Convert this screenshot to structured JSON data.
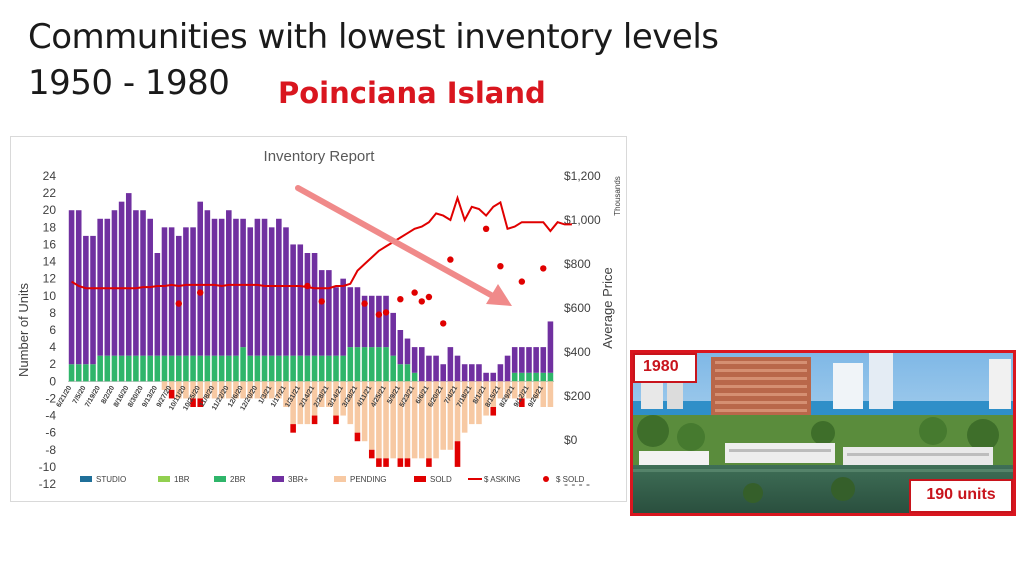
{
  "slide": {
    "title_line1": "Communities with lowest inventory levels",
    "title_line2": "1950 - 1980",
    "community": "Poinciana Island"
  },
  "photo": {
    "year_label": "1980",
    "units_label": "190 units"
  },
  "colors": {
    "title_red": "#d9161f",
    "studio": "#1f6f99",
    "br1": "#92d050",
    "br2": "#2fb56a",
    "br3plus": "#7030a0",
    "pending": "#f7c9a3",
    "sold": "#e00000",
    "asking": "#e00000",
    "arrow": "#f08a8a"
  },
  "chart_data": {
    "type": "bar",
    "title": "Inventory Report",
    "ylabel": "Number of Units",
    "y2label": "Average Price",
    "y2unit": "Thousands",
    "ylim": [
      -12,
      24
    ],
    "yticks": [
      24,
      22,
      20,
      18,
      16,
      14,
      12,
      10,
      8,
      6,
      4,
      2,
      0,
      -2,
      -4,
      -6,
      -8,
      -10,
      -12
    ],
    "y2lim": [
      -200,
      1200
    ],
    "y2ticks": [
      {
        "v": 1200,
        "label": "$1,200"
      },
      {
        "v": 1000,
        "label": "$1,000"
      },
      {
        "v": 800,
        "label": "$800"
      },
      {
        "v": 600,
        "label": "$600"
      },
      {
        "v": 400,
        "label": "$400"
      },
      {
        "v": 200,
        "label": "$200"
      },
      {
        "v": 0,
        "label": "$0"
      },
      {
        "v": -200,
        "label": "- - - -"
      }
    ],
    "x_tick_labels": [
      "6/21/20",
      "7/5/20",
      "7/19/20",
      "8/2/20",
      "8/16/20",
      "8/30/20",
      "9/13/20",
      "9/27/20",
      "10/11/20",
      "10/25/20",
      "11/8/20",
      "11/22/20",
      "12/6/20",
      "12/20/20",
      "1/3/21",
      "1/17/21",
      "1/31/21",
      "2/14/21",
      "2/28/21",
      "3/14/21",
      "3/28/21",
      "4/11/21",
      "4/25/21",
      "5/9/21",
      "5/23/21",
      "6/6/21",
      "6/20/21",
      "7/4/21",
      "7/18/21",
      "8/1/21",
      "8/15/21",
      "8/29/21",
      "9/12/21",
      "9/26/21"
    ],
    "legend": [
      "STUDIO",
      "1BR",
      "2BR",
      "3BR+",
      "PENDING",
      "SOLD",
      "$ ASKING",
      "$ SOLD"
    ],
    "legend_position": "bottom",
    "series": [
      {
        "name": "STUDIO",
        "values": [
          0,
          0,
          0,
          0,
          0,
          0,
          0,
          0,
          0,
          0,
          0,
          0,
          0,
          0,
          0,
          0,
          0,
          0,
          0,
          0,
          0,
          0,
          0,
          0,
          0,
          0,
          0,
          0,
          0,
          0,
          0,
          0,
          0,
          0,
          0,
          0,
          0,
          0,
          0,
          0,
          0,
          0,
          0,
          0,
          0,
          0,
          0,
          0,
          0,
          0,
          0,
          0,
          0,
          0,
          0,
          0,
          0,
          0,
          0,
          0,
          0,
          0,
          0,
          0,
          0,
          0,
          0,
          0
        ]
      },
      {
        "name": "1BR",
        "values": [
          0,
          0,
          0,
          0,
          0,
          0,
          0,
          0,
          0,
          0,
          0,
          0,
          0,
          0,
          0,
          0,
          0,
          0,
          0,
          0,
          0,
          0,
          0,
          0,
          0,
          0,
          0,
          0,
          0,
          0,
          0,
          0,
          0,
          0,
          0,
          0,
          0,
          0,
          0,
          0,
          0,
          0,
          0,
          0,
          0,
          0,
          0,
          0,
          0,
          0,
          0,
          0,
          0,
          0,
          0,
          0,
          0,
          0,
          0,
          0,
          0,
          0,
          0,
          0,
          0,
          0,
          0,
          0
        ]
      },
      {
        "name": "2BR",
        "values": [
          2,
          2,
          2,
          2,
          3,
          3,
          3,
          3,
          3,
          3,
          3,
          3,
          3,
          3,
          3,
          3,
          3,
          3,
          3,
          3,
          3,
          3,
          3,
          3,
          4,
          3,
          3,
          3,
          3,
          3,
          3,
          3,
          3,
          3,
          3,
          3,
          3,
          3,
          3,
          4,
          4,
          4,
          4,
          4,
          4,
          3,
          2,
          2,
          1,
          0,
          0,
          0,
          0,
          0,
          0,
          0,
          0,
          0,
          0,
          0,
          0,
          0,
          1,
          1,
          1,
          1,
          1,
          1,
          1,
          1,
          1
        ]
      },
      {
        "name": "3BR+",
        "values": [
          18,
          18,
          15,
          15,
          16,
          16,
          17,
          18,
          19,
          17,
          17,
          16,
          12,
          15,
          15,
          14,
          15,
          15,
          18,
          17,
          16,
          16,
          17,
          16,
          15,
          15,
          16,
          16,
          15,
          16,
          15,
          13,
          13,
          12,
          12,
          10,
          10,
          8,
          9,
          7,
          7,
          6,
          6,
          6,
          6,
          5,
          4,
          3,
          3,
          4,
          3,
          3,
          2,
          4,
          3,
          2,
          2,
          2,
          1,
          1,
          2,
          3,
          3,
          3,
          3,
          3,
          3,
          6,
          5,
          5,
          4
        ]
      },
      {
        "name": "PENDING",
        "values": [
          0,
          0,
          0,
          0,
          0,
          0,
          0,
          0,
          0,
          0,
          0,
          0,
          0,
          -1,
          -1,
          -2,
          -2,
          -2,
          -2,
          -2,
          -2,
          -2,
          -2,
          -2,
          -2,
          -2,
          -2,
          -2,
          -2,
          -2,
          -3,
          -5,
          -5,
          -5,
          -4,
          -3,
          -3,
          -4,
          -4,
          -5,
          -6,
          -7,
          -8,
          -9,
          -9,
          -9,
          -9,
          -9,
          -9,
          -9,
          -9,
          -9,
          -8,
          -8,
          -7,
          -6,
          -5,
          -5,
          -4,
          -3,
          -2,
          -2,
          -2,
          -2,
          -2,
          -2,
          -3,
          -3,
          -3,
          -4,
          -4
        ]
      },
      {
        "name": "SOLD",
        "values": [
          0,
          0,
          0,
          0,
          0,
          0,
          0,
          0,
          0,
          0,
          0,
          0,
          0,
          0,
          -1,
          0,
          0,
          -1,
          -1,
          0,
          0,
          0,
          0,
          0,
          0,
          0,
          0,
          0,
          0,
          0,
          0,
          -1,
          0,
          0,
          -1,
          0,
          0,
          -1,
          0,
          0,
          -1,
          0,
          -1,
          -1,
          -1,
          0,
          -1,
          -1,
          0,
          0,
          -1,
          0,
          0,
          0,
          -3,
          0,
          0,
          0,
          0,
          -1,
          0,
          0,
          0,
          -1,
          0,
          0,
          0,
          0,
          0,
          0,
          0
        ]
      },
      {
        "name": "$ ASKING",
        "axis": "right",
        "values": [
          720,
          700,
          690,
          690,
          690,
          690,
          690,
          690,
          690,
          690,
          695,
          695,
          700,
          700,
          705,
          700,
          705,
          705,
          705,
          705,
          705,
          700,
          705,
          705,
          705,
          705,
          705,
          700,
          700,
          700,
          700,
          700,
          700,
          695,
          690,
          690,
          690,
          700,
          700,
          710,
          770,
          800,
          830,
          860,
          880,
          900,
          920,
          940,
          960,
          970,
          990,
          1030,
          1020,
          1000,
          1100,
          1000,
          1060,
          1050,
          1020,
          1060,
          1080,
          960,
          970,
          990,
          990,
          990,
          990,
          950,
          990,
          980,
          980
        ]
      },
      {
        "name": "$ SOLD",
        "axis": "right",
        "type": "scatter",
        "points": [
          {
            "x": 15,
            "y": 620
          },
          {
            "x": 18,
            "y": 670
          },
          {
            "x": 33,
            "y": 700
          },
          {
            "x": 35,
            "y": 630
          },
          {
            "x": 41,
            "y": 620
          },
          {
            "x": 43,
            "y": 570
          },
          {
            "x": 44,
            "y": 580
          },
          {
            "x": 46,
            "y": 640
          },
          {
            "x": 48,
            "y": 670
          },
          {
            "x": 49,
            "y": 630
          },
          {
            "x": 50,
            "y": 650
          },
          {
            "x": 52,
            "y": 530
          },
          {
            "x": 53,
            "y": 820
          },
          {
            "x": 58,
            "y": 960
          },
          {
            "x": 60,
            "y": 790
          },
          {
            "x": 63,
            "y": 720
          },
          {
            "x": 66,
            "y": 780
          }
        ]
      }
    ]
  }
}
